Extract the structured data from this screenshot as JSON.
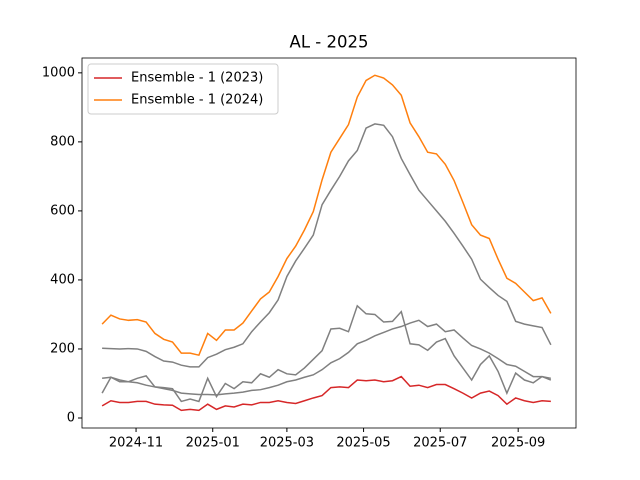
{
  "chart_data": {
    "type": "line",
    "title": "AL - 2025",
    "x": [
      "2024-10-05",
      "2024-10-12",
      "2024-10-19",
      "2024-10-26",
      "2024-11-02",
      "2024-11-09",
      "2024-11-16",
      "2024-11-23",
      "2024-11-30",
      "2024-12-07",
      "2024-12-14",
      "2024-12-21",
      "2024-12-28",
      "2025-01-04",
      "2025-01-11",
      "2025-01-18",
      "2025-01-25",
      "2025-02-01",
      "2025-02-08",
      "2025-02-15",
      "2025-02-22",
      "2025-03-01",
      "2025-03-08",
      "2025-03-15",
      "2025-03-22",
      "2025-03-29",
      "2025-04-05",
      "2025-04-12",
      "2025-04-19",
      "2025-04-26",
      "2025-05-03",
      "2025-05-10",
      "2025-05-17",
      "2025-05-24",
      "2025-05-31",
      "2025-06-07",
      "2025-06-14",
      "2025-06-21",
      "2025-06-28",
      "2025-07-05",
      "2025-07-12",
      "2025-07-19",
      "2025-07-26",
      "2025-08-02",
      "2025-08-09",
      "2025-08-16",
      "2025-08-23",
      "2025-08-30",
      "2025-09-06",
      "2025-09-13",
      "2025-09-20",
      "2025-09-27"
    ],
    "series": [
      {
        "name": "Ensemble - 1 (2023)",
        "color": "#d62728",
        "values": [
          35,
          50,
          45,
          45,
          48,
          48,
          40,
          38,
          37,
          22,
          25,
          22,
          40,
          25,
          35,
          32,
          40,
          38,
          45,
          45,
          50,
          45,
          42,
          50,
          58,
          65,
          88,
          90,
          88,
          110,
          108,
          110,
          105,
          108,
          120,
          92,
          95,
          88,
          97,
          97,
          85,
          72,
          58,
          72,
          78,
          65,
          40,
          58,
          50,
          45,
          50,
          48
        ]
      },
      {
        "name": "Ensemble - 1 (2024)",
        "color": "#ff7f0e",
        "values": [
          272,
          298,
          287,
          283,
          285,
          278,
          245,
          228,
          220,
          188,
          188,
          182,
          245,
          225,
          255,
          255,
          275,
          310,
          345,
          365,
          410,
          462,
          498,
          545,
          598,
          690,
          770,
          810,
          850,
          930,
          978,
          993,
          985,
          965,
          935,
          855,
          815,
          770,
          765,
          735,
          688,
          625,
          560,
          530,
          520,
          460,
          405,
          390,
          365,
          340,
          348,
          303
        ]
      },
      {
        "color": "#808080",
        "values": [
          202,
          201,
          200,
          201,
          200,
          193,
          178,
          165,
          162,
          153,
          148,
          148,
          175,
          185,
          198,
          205,
          215,
          250,
          278,
          305,
          342,
          410,
          455,
          492,
          530,
          618,
          660,
          700,
          745,
          775,
          840,
          852,
          848,
          815,
          752,
          705,
          660,
          630,
          600,
          570,
          535,
          498,
          460,
          402,
          378,
          355,
          338,
          280,
          272,
          267,
          262,
          212
        ]
      },
      {
        "color": "#808080",
        "values": [
          72,
          118,
          105,
          105,
          115,
          122,
          90,
          88,
          85,
          48,
          55,
          48,
          115,
          62,
          100,
          85,
          105,
          102,
          128,
          118,
          140,
          128,
          125,
          145,
          170,
          195,
          258,
          260,
          250,
          325,
          302,
          300,
          278,
          280,
          308,
          215,
          212,
          196,
          220,
          230,
          180,
          145,
          110,
          155,
          180,
          135,
          72,
          130,
          110,
          102,
          120,
          110
        ]
      },
      {
        "color": "#808080",
        "values": [
          115,
          118,
          110,
          105,
          102,
          95,
          90,
          85,
          80,
          72,
          70,
          68,
          68,
          67,
          70,
          72,
          75,
          80,
          82,
          88,
          95,
          105,
          110,
          118,
          125,
          140,
          160,
          172,
          190,
          215,
          225,
          238,
          248,
          258,
          265,
          275,
          283,
          265,
          272,
          250,
          255,
          232,
          210,
          200,
          188,
          172,
          155,
          150,
          135,
          120,
          120,
          115
        ]
      }
    ],
    "xlim": [
      "2024-09-19",
      "2025-10-17"
    ],
    "xticks": [
      {
        "value": "2024-11-01",
        "label": "2024-11"
      },
      {
        "value": "2025-01-01",
        "label": "2025-01"
      },
      {
        "value": "2025-03-01",
        "label": "2025-03"
      },
      {
        "value": "2025-05-01",
        "label": "2025-05"
      },
      {
        "value": "2025-07-01",
        "label": "2025-07"
      },
      {
        "value": "2025-09-01",
        "label": "2025-09"
      }
    ],
    "ylim": [
      -29,
      1043
    ],
    "yticks": [
      0,
      200,
      400,
      600,
      800,
      1000
    ],
    "legend": "upper left",
    "grid": false
  }
}
